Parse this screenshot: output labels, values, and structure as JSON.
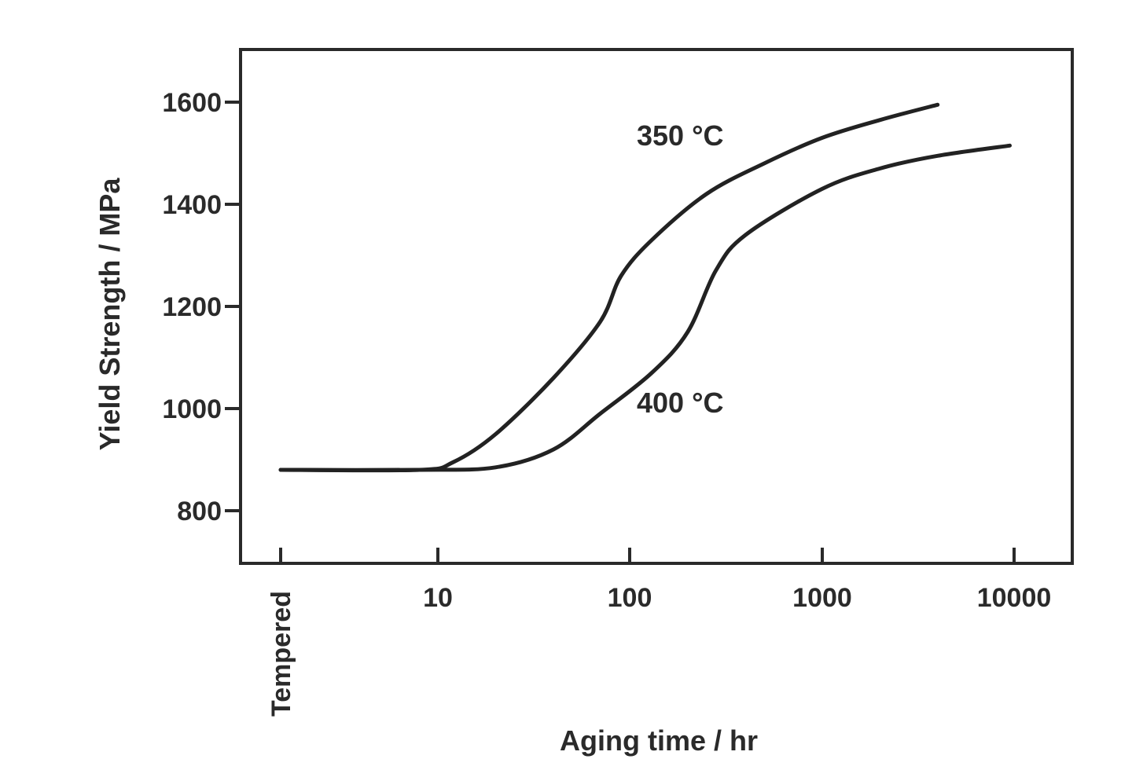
{
  "chart_data": {
    "type": "line",
    "xlabel": "Aging time / hr",
    "ylabel": "Yield Strength / MPa",
    "x_scale": "log",
    "x_ticks": [
      "Tempered",
      "10",
      "100",
      "1000",
      "10000"
    ],
    "y_ticks": [
      800,
      1000,
      1200,
      1400,
      1600
    ],
    "ylim": [
      700,
      1700
    ],
    "grid": false,
    "series": [
      {
        "name": "350 °C",
        "x": [
          "Tempered",
          8,
          12,
          20,
          40,
          70,
          90,
          130,
          250,
          500,
          1000,
          2000,
          4000
        ],
        "y": [
          880,
          880,
          895,
          950,
          1060,
          1170,
          1260,
          1330,
          1420,
          1480,
          1530,
          1565,
          1595
        ]
      },
      {
        "name": "400 °C",
        "x": [
          "Tempered",
          8,
          20,
          40,
          70,
          130,
          200,
          280,
          400,
          1000,
          2000,
          4000,
          9500
        ],
        "y": [
          880,
          880,
          885,
          920,
          990,
          1070,
          1150,
          1270,
          1340,
          1430,
          1470,
          1495,
          1515
        ]
      }
    ]
  }
}
